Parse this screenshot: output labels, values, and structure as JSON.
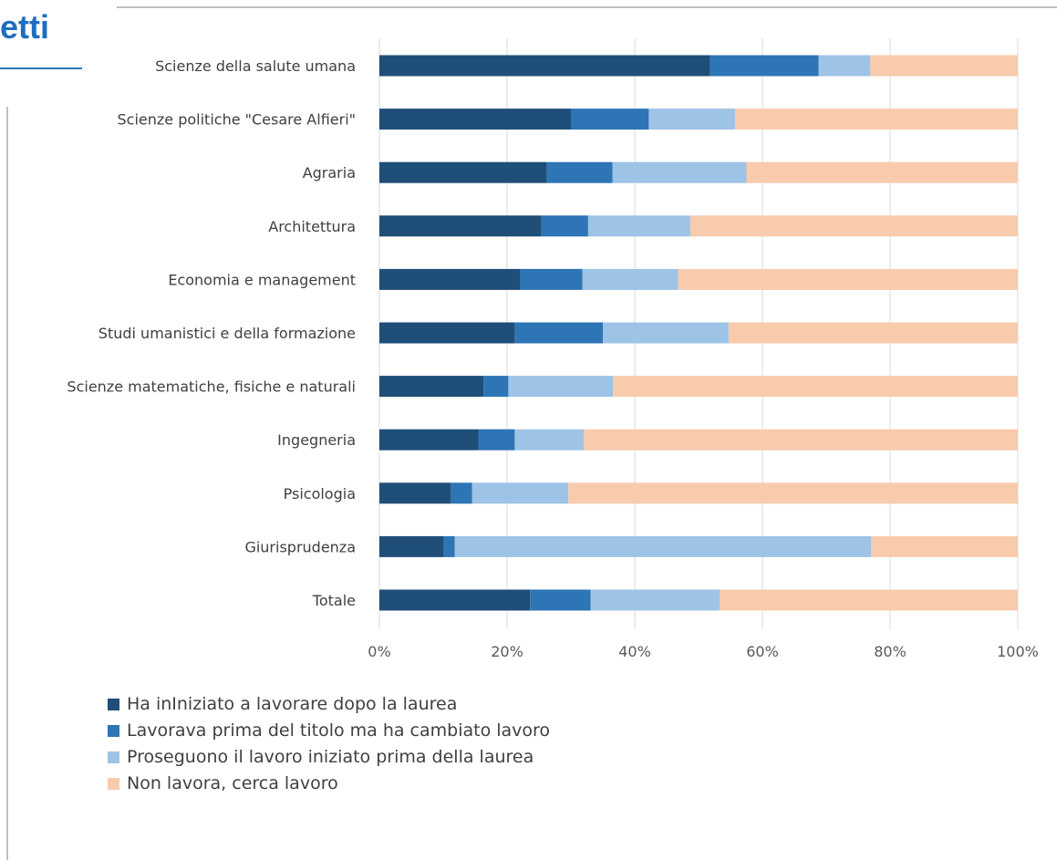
{
  "slide": {
    "title_fragment": "etti"
  },
  "chart_data": {
    "type": "bar",
    "orientation": "horizontal",
    "stacked": "percent",
    "title": "",
    "xlabel": "",
    "ylabel": "",
    "xlim": [
      0,
      100
    ],
    "x_ticks": [
      "0%",
      "20%",
      "40%",
      "60%",
      "80%",
      "100%"
    ],
    "grid": "vertical",
    "legend_position": "bottom",
    "categories": [
      "Scienze della salute umana",
      "Scienze politiche \"Cesare Alfieri\"",
      "Agraria",
      "Architettura",
      "Economia e management",
      "Studi umanistici e della formazione",
      "Scienze matematiche, fisiche e naturali",
      "Ingegneria",
      "Psicologia",
      "Giurisprudenza",
      "Totale"
    ],
    "series": [
      {
        "name": "Ha inIniziato a lavorare dopo la laurea",
        "color": "#1f4e79",
        "values": [
          51.8,
          30.0,
          26.2,
          25.4,
          22.0,
          21.2,
          16.3,
          15.5,
          11.2,
          10.1,
          23.6
        ]
      },
      {
        "name": "Lavorava prima del titolo ma ha cambiato lavoro",
        "color": "#2e75b6",
        "values": [
          17.0,
          12.2,
          10.3,
          7.3,
          9.8,
          13.8,
          3.9,
          5.7,
          3.3,
          1.7,
          9.5
        ]
      },
      {
        "name": "Proseguono il lavoro iniziato prima della laurea",
        "color": "#9dc3e6",
        "values": [
          8.1,
          13.5,
          21.0,
          16.0,
          15.0,
          19.7,
          16.4,
          10.8,
          15.1,
          65.2,
          20.2
        ]
      },
      {
        "name": "Non lavora, cerca lavoro",
        "color": "#f8cbad",
        "values": [
          23.1,
          44.3,
          42.5,
          51.3,
          53.2,
          45.3,
          63.4,
          68.0,
          70.4,
          23.0,
          46.7
        ]
      }
    ]
  }
}
